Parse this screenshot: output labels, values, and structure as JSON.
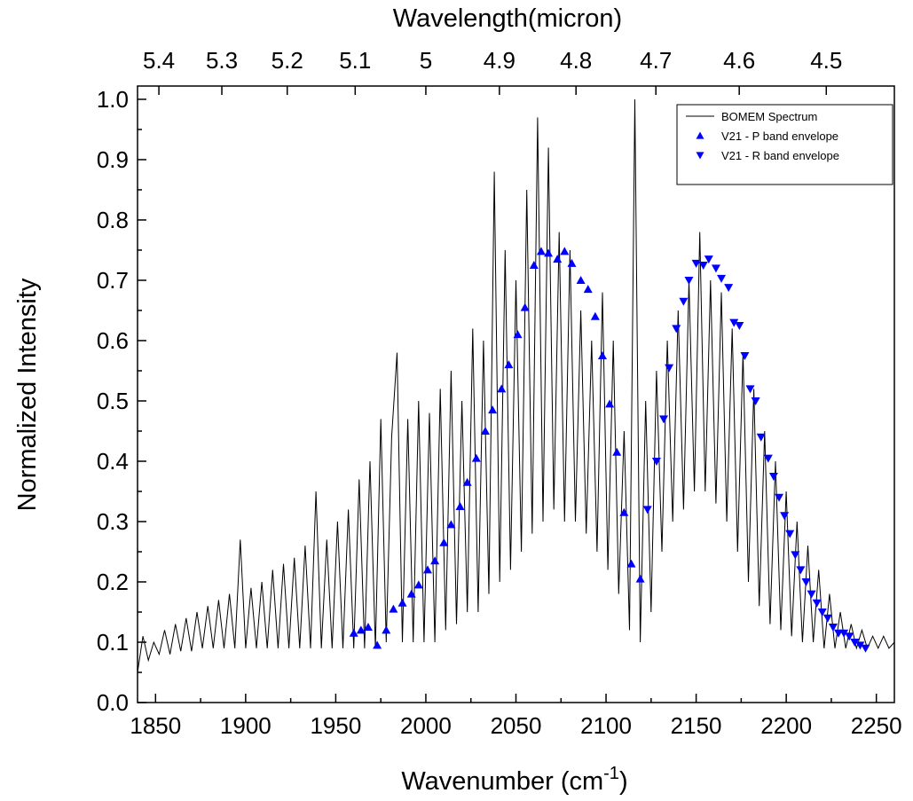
{
  "chart_data": {
    "type": "spectrum",
    "x_label": [
      "Wavenumber (cm",
      "-1",
      ")"
    ],
    "y_label": "Normalized Intensity",
    "x2_label": "Wavelength(micron)",
    "xlim": [
      1840,
      2260
    ],
    "xticks": [
      1850,
      1900,
      1950,
      2000,
      2050,
      2100,
      2150,
      2200,
      2250
    ],
    "ylim": [
      0,
      1.022
    ],
    "yticks": [
      {
        "value": 0,
        "label": "0.0"
      },
      0.1,
      0.2,
      0.3,
      0.4,
      0.5,
      0.6,
      0.7,
      0.8,
      0.9,
      {
        "value": 1,
        "label": "1.0"
      }
    ],
    "x2_conversion_factor": 10000,
    "x2ticks": [
      5.4,
      5.3,
      5.2,
      5.1,
      5,
      4.9,
      4.8,
      4.7,
      4.6,
      4.5
    ],
    "legend_position": "upper right",
    "series": [
      {
        "name": "BOMEM Spectrum",
        "kind": "line",
        "color": "#000000",
        "x": [
          1840,
          1843,
          1846,
          1849,
          1852,
          1855,
          1858,
          1861,
          1864,
          1867,
          1870,
          1873,
          1876,
          1879,
          1882,
          1885,
          1888,
          1891,
          1894,
          1897,
          1900,
          1903,
          1906,
          1909,
          1912,
          1915,
          1918,
          1921,
          1924,
          1927,
          1930,
          1933,
          1936,
          1939,
          1942,
          1945,
          1948,
          1951,
          1954,
          1957,
          1960,
          1963,
          1966,
          1969,
          1972,
          1975,
          1978,
          1981,
          1984,
          1987,
          1990,
          1993,
          1996,
          1999,
          2002,
          2005,
          2008,
          2011,
          2014,
          2017,
          2020,
          2023,
          2026,
          2029,
          2032,
          2035,
          2038,
          2041,
          2044,
          2047,
          2050,
          2053,
          2056,
          2059,
          2062,
          2065,
          2068,
          2071,
          2074,
          2077,
          2080,
          2083,
          2086,
          2089,
          2092,
          2095,
          2098,
          2101,
          2104,
          2107,
          2110,
          2113,
          2116,
          2119,
          2122,
          2125,
          2128,
          2131,
          2134,
          2137,
          2140,
          2143,
          2146,
          2149,
          2152,
          2155,
          2158,
          2161,
          2164,
          2167,
          2170,
          2173,
          2176,
          2179,
          2182,
          2185,
          2188,
          2191,
          2194,
          2197,
          2200,
          2203,
          2206,
          2209,
          2212,
          2215,
          2218,
          2221,
          2224,
          2227,
          2230,
          2233,
          2236,
          2239,
          2242,
          2245,
          2248,
          2251,
          2254,
          2257,
          2260
        ],
        "values": [
          0.05,
          0.11,
          0.07,
          0.1,
          0.08,
          0.12,
          0.08,
          0.13,
          0.085,
          0.14,
          0.085,
          0.15,
          0.09,
          0.16,
          0.09,
          0.17,
          0.09,
          0.18,
          0.09,
          0.27,
          0.09,
          0.19,
          0.09,
          0.2,
          0.09,
          0.22,
          0.09,
          0.23,
          0.09,
          0.24,
          0.09,
          0.26,
          0.09,
          0.35,
          0.09,
          0.27,
          0.09,
          0.3,
          0.09,
          0.32,
          0.09,
          0.37,
          0.09,
          0.4,
          0.09,
          0.47,
          0.1,
          0.44,
          0.58,
          0.1,
          0.47,
          0.1,
          0.5,
          0.1,
          0.48,
          0.1,
          0.52,
          0.12,
          0.55,
          0.13,
          0.5,
          0.15,
          0.62,
          0.15,
          0.6,
          0.18,
          0.88,
          0.2,
          0.75,
          0.22,
          0.7,
          0.25,
          0.85,
          0.28,
          0.97,
          0.3,
          0.92,
          0.32,
          0.78,
          0.3,
          0.75,
          0.3,
          0.65,
          0.28,
          0.6,
          0.25,
          0.68,
          0.22,
          0.6,
          0.18,
          0.45,
          0.12,
          1.0,
          0.1,
          0.5,
          0.15,
          0.55,
          0.25,
          0.6,
          0.3,
          0.65,
          0.32,
          0.7,
          0.35,
          0.78,
          0.35,
          0.7,
          0.33,
          0.68,
          0.3,
          0.62,
          0.25,
          0.58,
          0.2,
          0.52,
          0.16,
          0.45,
          0.13,
          0.4,
          0.12,
          0.35,
          0.11,
          0.3,
          0.1,
          0.26,
          0.1,
          0.22,
          0.09,
          0.18,
          0.09,
          0.15,
          0.09,
          0.13,
          0.09,
          0.12,
          0.09,
          0.11,
          0.09,
          0.11,
          0.09,
          0.1
        ]
      },
      {
        "name": "V21 - P band envelope",
        "kind": "triangle-up",
        "color": "#0000ff",
        "x": [
          1960,
          1964,
          1968,
          1973,
          1978,
          1982,
          1987,
          1992,
          1996,
          2001,
          2005,
          2010,
          2014,
          2019,
          2023,
          2028,
          2033,
          2037,
          2042,
          2046,
          2051,
          2055,
          2060,
          2064,
          2068,
          2073,
          2077,
          2081,
          2086,
          2090,
          2094,
          2098,
          2102,
          2106,
          2110,
          2114,
          2119
        ],
        "values": [
          0.115,
          0.12,
          0.125,
          0.095,
          0.12,
          0.155,
          0.165,
          0.18,
          0.195,
          0.22,
          0.235,
          0.265,
          0.295,
          0.325,
          0.365,
          0.405,
          0.45,
          0.485,
          0.52,
          0.56,
          0.61,
          0.655,
          0.725,
          0.748,
          0.745,
          0.735,
          0.748,
          0.728,
          0.7,
          0.685,
          0.64,
          0.575,
          0.495,
          0.415,
          0.315,
          0.23,
          0.205
        ]
      },
      {
        "name": "V21 - R band envelope",
        "kind": "triangle-down",
        "color": "#0000ff",
        "x": [
          2123,
          2128,
          2132,
          2135,
          2139,
          2143,
          2146,
          2150,
          2154,
          2157,
          2161,
          2164,
          2168,
          2171,
          2174,
          2177,
          2180,
          2183,
          2186,
          2190,
          2193,
          2196,
          2199,
          2202,
          2205,
          2208,
          2211,
          2214,
          2217,
          2220,
          2223,
          2226,
          2229,
          2232,
          2235,
          2238,
          2241,
          2244
        ],
        "values": [
          0.32,
          0.4,
          0.47,
          0.555,
          0.62,
          0.665,
          0.7,
          0.728,
          0.725,
          0.735,
          0.72,
          0.703,
          0.688,
          0.63,
          0.625,
          0.575,
          0.52,
          0.5,
          0.44,
          0.405,
          0.375,
          0.34,
          0.31,
          0.28,
          0.245,
          0.22,
          0.2,
          0.18,
          0.165,
          0.15,
          0.14,
          0.125,
          0.115,
          0.115,
          0.11,
          0.1,
          0.095,
          0.09
        ]
      }
    ]
  }
}
